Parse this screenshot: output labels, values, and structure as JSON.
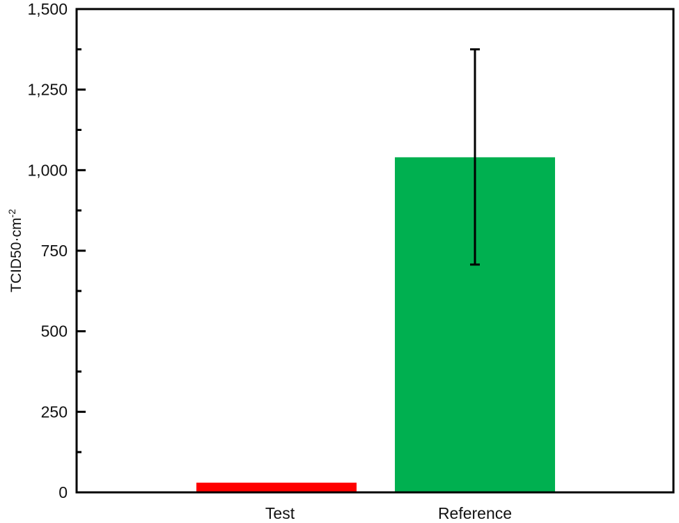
{
  "chart_data": {
    "type": "bar",
    "title": "",
    "xlabel": "",
    "ylabel": "TCID50·cm⁻²",
    "ylabel_base": "TCID50·cm",
    "ylabel_sup": "-2",
    "categories": [
      "Test",
      "Reference"
    ],
    "values": [
      30,
      1040
    ],
    "error_bars": [
      null,
      {
        "lower": 707,
        "upper": 1375
      }
    ],
    "colors": [
      "#ff0000",
      "#00b050"
    ],
    "ylim": [
      0,
      1500
    ],
    "yticks": [
      0,
      250,
      500,
      750,
      1000,
      1250,
      1500
    ],
    "ytick_labels": [
      "0",
      "250",
      "500",
      "750",
      "1,000",
      "1,250",
      "1,500"
    ],
    "minor_ytick_step": 125,
    "grid": false,
    "legend": null
  }
}
